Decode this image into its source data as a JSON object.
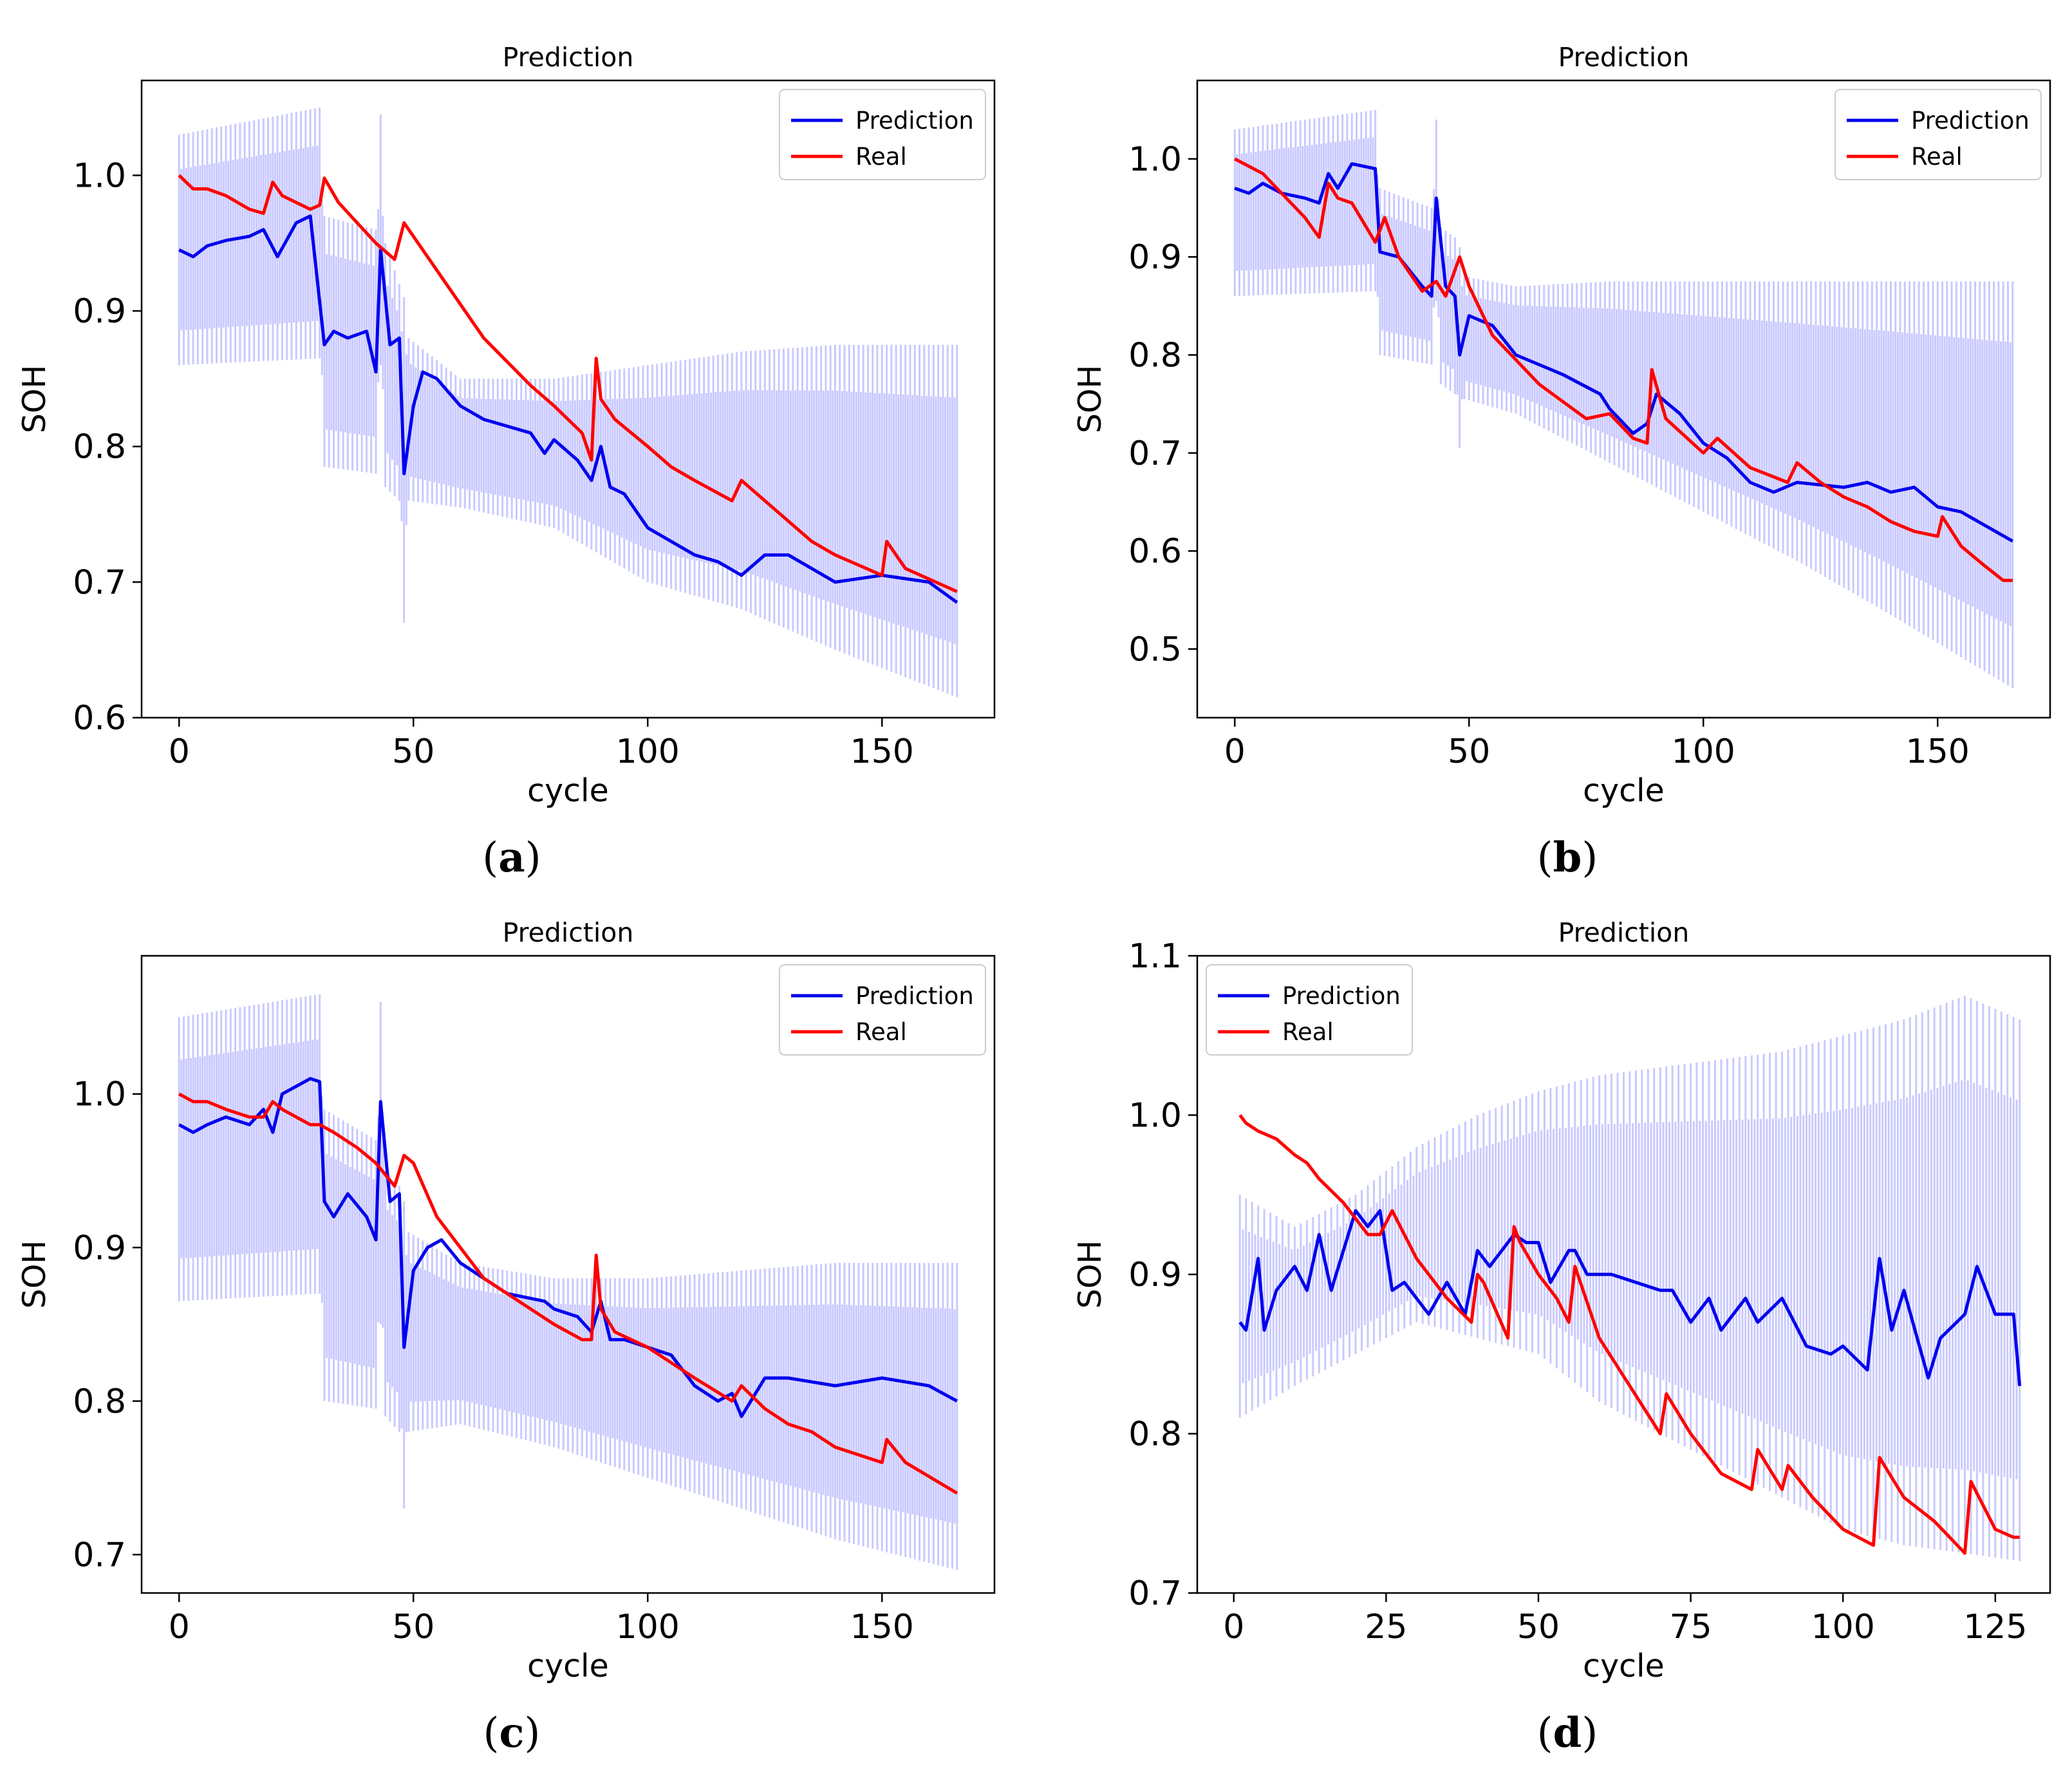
{
  "colors": {
    "prediction": "#0000ee",
    "real": "#ff0000",
    "band": "#c9c9ff"
  },
  "chart_data": [
    {
      "id": "a",
      "type": "line",
      "panel_label": "a",
      "title": "Prediction",
      "xlabel": "cycle",
      "ylabel": "SOH",
      "xlim": [
        -8,
        174
      ],
      "ylim": [
        0.6,
        1.07
      ],
      "xticks": [
        0,
        50,
        100,
        150
      ],
      "xtick_labels": [
        "0",
        "50",
        "100",
        "150"
      ],
      "yticks": [
        0.6,
        0.7,
        0.8,
        0.9,
        1.0
      ],
      "ytick_labels": [
        "0.6",
        "0.7",
        "0.8",
        "0.9",
        "1.0"
      ],
      "legend": {
        "position": "top-right",
        "entries": [
          "Prediction",
          "Real"
        ]
      },
      "series": [
        {
          "name": "Prediction",
          "x": [
            0,
            3,
            6,
            10,
            15,
            18,
            21,
            25,
            28,
            31,
            33,
            36,
            40,
            42,
            43,
            45,
            47,
            48,
            50,
            52,
            55,
            60,
            65,
            70,
            75,
            78,
            80,
            85,
            88,
            90,
            92,
            95,
            100,
            105,
            110,
            115,
            120,
            125,
            130,
            140,
            150,
            160,
            166
          ],
          "values": [
            0.945,
            0.94,
            0.948,
            0.952,
            0.955,
            0.96,
            0.94,
            0.965,
            0.97,
            0.875,
            0.885,
            0.88,
            0.885,
            0.855,
            0.945,
            0.875,
            0.88,
            0.78,
            0.83,
            0.855,
            0.85,
            0.83,
            0.82,
            0.815,
            0.81,
            0.795,
            0.805,
            0.79,
            0.775,
            0.8,
            0.77,
            0.765,
            0.74,
            0.73,
            0.72,
            0.715,
            0.705,
            0.72,
            0.72,
            0.7,
            0.705,
            0.7,
            0.685
          ]
        },
        {
          "name": "Real",
          "x": [
            0,
            3,
            6,
            10,
            15,
            18,
            20,
            22,
            25,
            28,
            30,
            31,
            34,
            38,
            42,
            46,
            48,
            55,
            65,
            75,
            80,
            86,
            88,
            89,
            90,
            93,
            100,
            105,
            110,
            118,
            120,
            125,
            130,
            135,
            140,
            150,
            151,
            155,
            166
          ],
          "values": [
            1.0,
            0.99,
            0.99,
            0.985,
            0.975,
            0.972,
            0.995,
            0.985,
            0.98,
            0.975,
            0.978,
            0.998,
            0.98,
            0.965,
            0.95,
            0.938,
            0.965,
            0.93,
            0.88,
            0.845,
            0.83,
            0.81,
            0.79,
            0.865,
            0.835,
            0.82,
            0.8,
            0.785,
            0.775,
            0.76,
            0.775,
            0.76,
            0.745,
            0.73,
            0.72,
            0.705,
            0.73,
            0.71,
            0.693
          ]
        }
      ],
      "band": {
        "name": "prediction interval",
        "x": [
          0,
          30,
          31,
          42,
          43,
          44,
          47,
          48,
          49,
          60,
          80,
          100,
          120,
          140,
          166
        ],
        "upper": [
          1.03,
          1.05,
          0.97,
          0.96,
          1.045,
          0.95,
          0.92,
          0.91,
          0.88,
          0.85,
          0.85,
          0.86,
          0.87,
          0.875,
          0.875
        ],
        "lower": [
          0.86,
          0.865,
          0.785,
          0.78,
          0.86,
          0.77,
          0.76,
          0.67,
          0.76,
          0.755,
          0.74,
          0.7,
          0.68,
          0.65,
          0.615
        ]
      }
    },
    {
      "id": "b",
      "type": "line",
      "panel_label": "b",
      "title": "Prediction",
      "xlabel": "cycle",
      "ylabel": "SOH",
      "xlim": [
        -8,
        174
      ],
      "ylim": [
        0.43,
        1.08
      ],
      "xticks": [
        0,
        50,
        100,
        150
      ],
      "xtick_labels": [
        "0",
        "50",
        "100",
        "150"
      ],
      "yticks": [
        0.5,
        0.6,
        0.7,
        0.8,
        0.9,
        1.0
      ],
      "ytick_labels": [
        "0.5",
        "0.6",
        "0.7",
        "0.8",
        "0.9",
        "1.0"
      ],
      "legend": {
        "position": "top-right",
        "entries": [
          "Prediction",
          "Real"
        ]
      },
      "series": [
        {
          "name": "Prediction",
          "x": [
            0,
            3,
            6,
            10,
            15,
            18,
            20,
            22,
            25,
            30,
            31,
            35,
            40,
            42,
            43,
            45,
            47,
            48,
            50,
            55,
            60,
            70,
            78,
            80,
            85,
            88,
            90,
            95,
            100,
            105,
            110,
            115,
            120,
            130,
            135,
            140,
            145,
            150,
            155,
            166
          ],
          "values": [
            0.97,
            0.965,
            0.975,
            0.965,
            0.96,
            0.955,
            0.985,
            0.97,
            0.995,
            0.99,
            0.905,
            0.9,
            0.87,
            0.86,
            0.96,
            0.87,
            0.86,
            0.8,
            0.84,
            0.83,
            0.8,
            0.78,
            0.76,
            0.745,
            0.72,
            0.73,
            0.76,
            0.74,
            0.71,
            0.695,
            0.67,
            0.66,
            0.67,
            0.665,
            0.67,
            0.66,
            0.665,
            0.645,
            0.64,
            0.61
          ]
        },
        {
          "name": "Real",
          "x": [
            0,
            4,
            6,
            10,
            15,
            18,
            20,
            22,
            25,
            30,
            32,
            35,
            40,
            43,
            45,
            48,
            50,
            55,
            65,
            75,
            80,
            85,
            88,
            89,
            92,
            100,
            103,
            110,
            118,
            120,
            125,
            130,
            135,
            140,
            145,
            150,
            151,
            155,
            160,
            164,
            166
          ],
          "values": [
            1.0,
            0.99,
            0.985,
            0.965,
            0.94,
            0.92,
            0.975,
            0.96,
            0.955,
            0.915,
            0.94,
            0.9,
            0.865,
            0.875,
            0.86,
            0.9,
            0.87,
            0.82,
            0.77,
            0.735,
            0.74,
            0.715,
            0.71,
            0.785,
            0.735,
            0.7,
            0.715,
            0.685,
            0.67,
            0.69,
            0.67,
            0.655,
            0.645,
            0.63,
            0.62,
            0.615,
            0.635,
            0.605,
            0.585,
            0.57,
            0.57
          ]
        }
      ],
      "band": {
        "name": "prediction interval",
        "x": [
          0,
          30,
          31,
          42,
          43,
          44,
          47,
          48,
          49,
          60,
          80,
          100,
          120,
          140,
          166
        ],
        "upper": [
          1.03,
          1.05,
          0.97,
          0.95,
          1.04,
          0.93,
          0.92,
          0.91,
          0.88,
          0.87,
          0.875,
          0.875,
          0.875,
          0.875,
          0.875
        ],
        "lower": [
          0.86,
          0.865,
          0.8,
          0.79,
          0.855,
          0.77,
          0.76,
          0.705,
          0.755,
          0.74,
          0.69,
          0.64,
          0.59,
          0.535,
          0.46
        ]
      }
    },
    {
      "id": "c",
      "type": "line",
      "panel_label": "c",
      "title": "Prediction",
      "xlabel": "cycle",
      "ylabel": "SOH",
      "xlim": [
        -8,
        174
      ],
      "ylim": [
        0.675,
        1.09
      ],
      "xticks": [
        0,
        50,
        100,
        150
      ],
      "xtick_labels": [
        "0",
        "50",
        "100",
        "150"
      ],
      "yticks": [
        0.7,
        0.8,
        0.9,
        1.0
      ],
      "ytick_labels": [
        "0.7",
        "0.8",
        "0.9",
        "1.0"
      ],
      "legend": {
        "position": "top-right",
        "entries": [
          "Prediction",
          "Real"
        ]
      },
      "series": [
        {
          "name": "Prediction",
          "x": [
            0,
            3,
            6,
            10,
            15,
            18,
            20,
            22,
            25,
            28,
            30,
            31,
            33,
            36,
            40,
            42,
            43,
            45,
            47,
            48,
            50,
            53,
            56,
            60,
            65,
            70,
            78,
            80,
            85,
            88,
            90,
            92,
            95,
            100,
            105,
            110,
            115,
            118,
            120,
            125,
            130,
            140,
            150,
            160,
            166
          ],
          "values": [
            0.98,
            0.975,
            0.98,
            0.985,
            0.98,
            0.99,
            0.975,
            1.0,
            1.005,
            1.01,
            1.008,
            0.93,
            0.92,
            0.935,
            0.92,
            0.905,
            0.995,
            0.93,
            0.935,
            0.835,
            0.885,
            0.9,
            0.905,
            0.89,
            0.88,
            0.87,
            0.865,
            0.86,
            0.855,
            0.845,
            0.865,
            0.84,
            0.84,
            0.835,
            0.83,
            0.81,
            0.8,
            0.805,
            0.79,
            0.815,
            0.815,
            0.81,
            0.815,
            0.81,
            0.8
          ]
        },
        {
          "name": "Real",
          "x": [
            0,
            3,
            6,
            10,
            15,
            18,
            20,
            22,
            25,
            28,
            30,
            33,
            38,
            42,
            46,
            48,
            50,
            55,
            65,
            75,
            80,
            86,
            88,
            89,
            90,
            93,
            100,
            105,
            110,
            118,
            120,
            125,
            130,
            135,
            140,
            150,
            151,
            155,
            166
          ],
          "values": [
            1.0,
            0.995,
            0.995,
            0.99,
            0.985,
            0.985,
            0.995,
            0.99,
            0.985,
            0.98,
            0.98,
            0.975,
            0.965,
            0.955,
            0.94,
            0.96,
            0.955,
            0.92,
            0.88,
            0.86,
            0.85,
            0.84,
            0.84,
            0.895,
            0.86,
            0.845,
            0.835,
            0.825,
            0.815,
            0.8,
            0.81,
            0.795,
            0.785,
            0.78,
            0.77,
            0.76,
            0.775,
            0.76,
            0.74
          ]
        }
      ],
      "band": {
        "name": "prediction interval",
        "x": [
          0,
          30,
          31,
          42,
          43,
          44,
          47,
          48,
          49,
          60,
          80,
          100,
          120,
          140,
          166
        ],
        "upper": [
          1.05,
          1.065,
          0.99,
          0.97,
          1.06,
          0.95,
          0.94,
          0.93,
          0.91,
          0.89,
          0.88,
          0.88,
          0.885,
          0.89,
          0.89
        ],
        "lower": [
          0.865,
          0.87,
          0.8,
          0.795,
          0.85,
          0.79,
          0.78,
          0.73,
          0.78,
          0.785,
          0.77,
          0.75,
          0.73,
          0.71,
          0.69
        ]
      }
    },
    {
      "id": "d",
      "type": "line",
      "panel_label": "d",
      "title": "Prediction",
      "xlabel": "cycle",
      "ylabel": "SOH",
      "xlim": [
        -6,
        134
      ],
      "ylim": [
        0.7,
        1.1
      ],
      "xticks": [
        0,
        25,
        50,
        75,
        100,
        125
      ],
      "xtick_labels": [
        "0",
        "25",
        "50",
        "75",
        "100",
        "125"
      ],
      "yticks": [
        0.7,
        0.8,
        0.9,
        1.0,
        1.1
      ],
      "ytick_labels": [
        "0.7",
        "0.8",
        "0.9",
        "1.0",
        "1.1"
      ],
      "legend": {
        "position": "top-left",
        "entries": [
          "Prediction",
          "Real"
        ]
      },
      "series": [
        {
          "name": "Prediction",
          "x": [
            1,
            2,
            4,
            5,
            7,
            10,
            12,
            14,
            16,
            18,
            20,
            22,
            24,
            26,
            28,
            32,
            35,
            38,
            40,
            42,
            44,
            46,
            48,
            50,
            52,
            55,
            56,
            58,
            62,
            66,
            70,
            72,
            75,
            78,
            80,
            84,
            86,
            90,
            94,
            98,
            100,
            104,
            106,
            108,
            110,
            114,
            116,
            120,
            122,
            125,
            128,
            129
          ],
          "values": [
            0.87,
            0.865,
            0.91,
            0.865,
            0.89,
            0.905,
            0.89,
            0.925,
            0.89,
            0.915,
            0.94,
            0.93,
            0.94,
            0.89,
            0.895,
            0.875,
            0.895,
            0.875,
            0.915,
            0.905,
            0.915,
            0.925,
            0.92,
            0.92,
            0.895,
            0.915,
            0.915,
            0.9,
            0.9,
            0.895,
            0.89,
            0.89,
            0.87,
            0.885,
            0.865,
            0.885,
            0.87,
            0.885,
            0.855,
            0.85,
            0.855,
            0.84,
            0.91,
            0.865,
            0.89,
            0.835,
            0.86,
            0.875,
            0.905,
            0.875,
            0.875,
            0.83
          ]
        },
        {
          "name": "Real",
          "x": [
            1,
            2,
            4,
            7,
            10,
            12,
            14,
            18,
            22,
            24,
            26,
            30,
            35,
            39,
            40,
            41,
            45,
            46,
            47,
            50,
            53,
            55,
            56,
            60,
            65,
            70,
            71,
            75,
            80,
            85,
            86,
            90,
            91,
            95,
            100,
            105,
            106,
            110,
            115,
            120,
            121,
            125,
            128,
            129
          ],
          "values": [
            1.0,
            0.995,
            0.99,
            0.985,
            0.975,
            0.97,
            0.96,
            0.945,
            0.925,
            0.925,
            0.94,
            0.91,
            0.885,
            0.87,
            0.9,
            0.895,
            0.86,
            0.93,
            0.92,
            0.9,
            0.885,
            0.87,
            0.905,
            0.86,
            0.83,
            0.8,
            0.825,
            0.8,
            0.775,
            0.765,
            0.79,
            0.765,
            0.78,
            0.76,
            0.74,
            0.73,
            0.785,
            0.76,
            0.745,
            0.725,
            0.77,
            0.74,
            0.735,
            0.735
          ]
        }
      ],
      "band": {
        "name": "prediction interval",
        "x": [
          1,
          10,
          20,
          30,
          40,
          50,
          60,
          70,
          80,
          90,
          100,
          110,
          120,
          129
        ],
        "upper": [
          0.95,
          0.93,
          0.95,
          0.98,
          1.0,
          1.015,
          1.025,
          1.03,
          1.035,
          1.04,
          1.05,
          1.06,
          1.075,
          1.06
        ],
        "lower": [
          0.81,
          0.83,
          0.85,
          0.87,
          0.86,
          0.85,
          0.82,
          0.8,
          0.78,
          0.76,
          0.74,
          0.73,
          0.725,
          0.72
        ]
      }
    }
  ]
}
